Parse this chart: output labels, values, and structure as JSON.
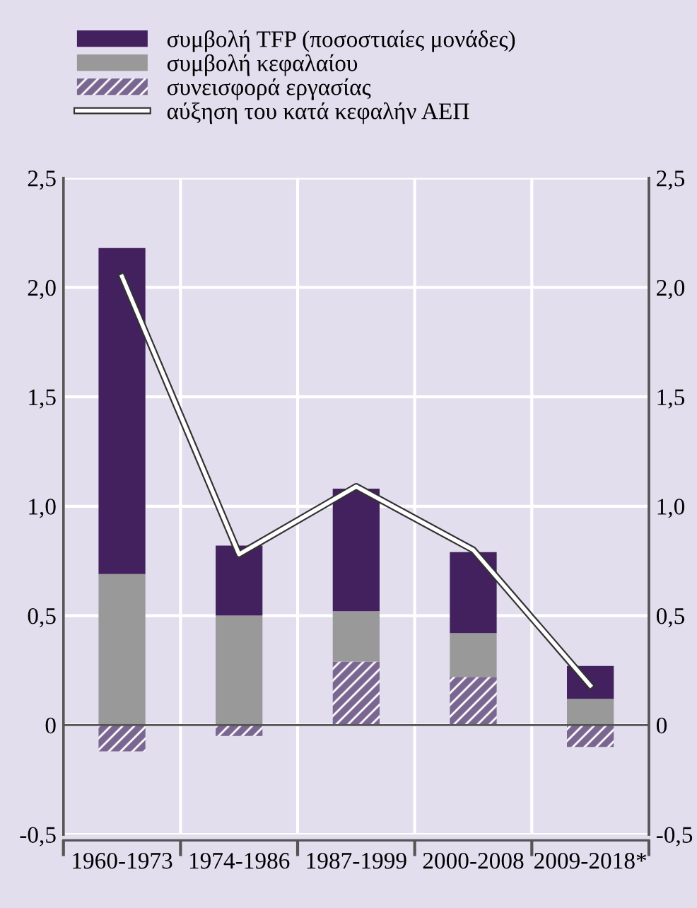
{
  "chart_data": {
    "type": "bar",
    "stacked": true,
    "categories": [
      "1960-1973",
      "1974-1986",
      "1987-1999",
      "2000-2008",
      "2009-2018*"
    ],
    "series": [
      {
        "name": "συνεισφορά εργασίας",
        "color": "#7a6690",
        "values": [
          -0.12,
          -0.05,
          0.29,
          0.22,
          -0.1
        ]
      },
      {
        "name": "συμβολή κεφαλαίου",
        "color": "#999999",
        "values": [
          0.69,
          0.5,
          0.23,
          0.2,
          0.12
        ]
      },
      {
        "name": "συμβολή TFP (ποσοστιαίες μονάδες)",
        "color": "#42215e",
        "values": [
          1.49,
          0.32,
          0.56,
          0.37,
          0.15
        ]
      },
      {
        "name": "αύξηση του κατά κεφαλήν ΑΕΠ",
        "type": "line",
        "color": "#ffffff",
        "values": [
          2.05,
          0.78,
          1.09,
          0.8,
          0.18
        ]
      }
    ],
    "ylim": [
      -0.5,
      2.5
    ],
    "yticks": [
      {
        "value": -0.5,
        "label": "-0,5"
      },
      0,
      {
        "value": 0.5,
        "label": "0,5"
      },
      {
        "value": 1,
        "label": "1,0"
      },
      {
        "value": 1.5,
        "label": "1,5"
      },
      {
        "value": 2,
        "label": "2,0"
      },
      {
        "value": 2.5,
        "label": "2,5"
      }
    ],
    "y2lim": [
      -0.5,
      2.5
    ],
    "y2ticks": [
      {
        "value": -0.5,
        "label": "-0,5"
      },
      0,
      {
        "value": 0.5,
        "label": "0,5"
      },
      {
        "value": 1,
        "label": "1,0"
      },
      {
        "value": 1.5,
        "label": "1,5"
      },
      {
        "value": 2,
        "label": "2,0"
      },
      {
        "value": 2.5,
        "label": "2,5"
      }
    ],
    "ref_lines": [
      {
        "axis": "y",
        "value": 0,
        "color": "#555555"
      }
    ],
    "grid": true,
    "legend": "top left"
  }
}
